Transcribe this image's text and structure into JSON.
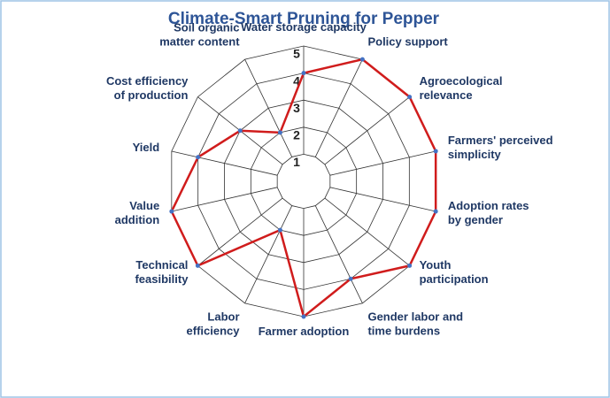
{
  "chart_data": {
    "type": "radar",
    "title": "Climate-Smart Pruning for Pepper",
    "categories": [
      "Water storage capacity",
      "Policy support",
      "Agroecological\nrelevance",
      "Farmers' perceived\nsimplicity",
      "Adoption rates\nby gender",
      "Youth\nparticipation",
      "Gender labor and\ntime burdens",
      "Farmer adoption",
      "Labor\nefficiency",
      "Technical\nfeasibility",
      "Value\naddition",
      "Yield",
      "Cost efficiency\nof production",
      "Soil organic\nmatter content"
    ],
    "series": [
      {
        "name": "Climate-Smart Pruning for Pepper",
        "color": "#d01c1c",
        "values": [
          4,
          5,
          5,
          5,
          5,
          5,
          4,
          5,
          2,
          5,
          5,
          4,
          3,
          2
        ]
      }
    ],
    "rlim": [
      0,
      5
    ],
    "rticks": [
      1,
      2,
      3,
      4,
      5
    ],
    "grid": true
  }
}
